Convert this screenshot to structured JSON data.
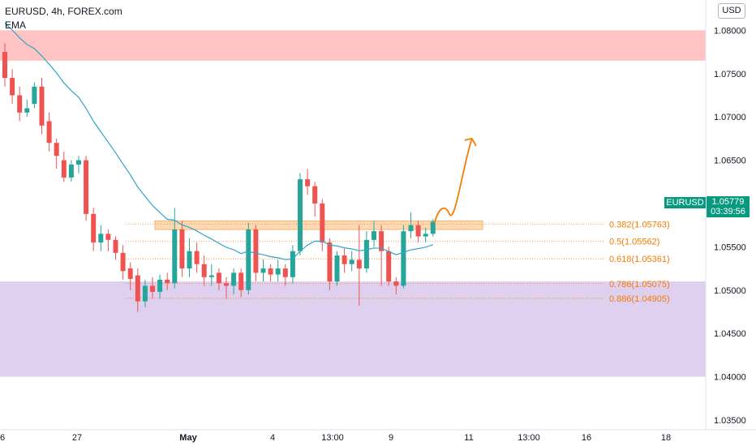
{
  "legend": {
    "symbol": "EURUSD, 4h, FOREX.com",
    "indicator": "EMA"
  },
  "currency_button": "USD",
  "last_price": {
    "symbol": "EURUSD",
    "price": "1.05779",
    "countdown": "03:39:56"
  },
  "colors": {
    "up": "#26a69a",
    "down": "#ef5350",
    "ema": "#2ea6c9",
    "supply_zone": "#ffb8b8",
    "demand_zone": "#d9c8ec",
    "resistance_band": "#ffcc99",
    "fib": "#f57c00",
    "projection": "#f57c00"
  },
  "chart_data": {
    "type": "candlestick",
    "ylim": [
      1.032,
      1.0835
    ],
    "y_ticks": [
      "1.08000",
      "1.07500",
      "1.07000",
      "1.06500",
      "1.06000",
      "1.05500",
      "1.05000",
      "1.04500",
      "1.04000",
      "1.03500"
    ],
    "x_ticks": [
      "6",
      "27",
      "May",
      "4",
      "13:00",
      "9",
      "11",
      "13:00",
      "16",
      "18"
    ],
    "zones": [
      {
        "name": "supply",
        "from": 1.0765,
        "to": 1.08
      },
      {
        "name": "demand",
        "from": 1.04,
        "to": 1.051
      },
      {
        "name": "resistance",
        "from": 1.057,
        "to": 1.058
      }
    ],
    "fib_levels": [
      {
        "ratio": "0.382",
        "price": "1.05763",
        "value": 1.05763
      },
      {
        "ratio": "0.5",
        "price": "1.05562",
        "value": 1.05562
      },
      {
        "ratio": "0.618",
        "price": "1.05361",
        "value": 1.05361
      },
      {
        "ratio": "0.786",
        "price": "1.05075",
        "value": 1.05075
      },
      {
        "ratio": "0.886",
        "price": "1.04905",
        "value": 1.04905
      }
    ],
    "candles": [
      [
        1.0775,
        1.0745,
        1.0785,
        1.0735
      ],
      [
        1.0745,
        1.0725,
        1.0755,
        1.0715
      ],
      [
        1.0725,
        1.0705,
        1.0735,
        1.0695
      ],
      [
        1.0705,
        1.071,
        1.072,
        1.07
      ],
      [
        1.0715,
        1.0735,
        1.074,
        1.071
      ],
      [
        1.0735,
        1.069,
        1.0745,
        1.068
      ],
      [
        1.0695,
        1.067,
        1.0705,
        1.066
      ],
      [
        1.067,
        1.0655,
        1.0675,
        1.064
      ],
      [
        1.065,
        1.063,
        1.066,
        1.0625
      ],
      [
        1.063,
        1.0645,
        1.065,
        1.0625
      ],
      [
        1.0645,
        1.065,
        1.0655,
        1.0635
      ],
      [
        1.065,
        1.0588,
        1.0655,
        1.058
      ],
      [
        1.0588,
        1.0555,
        1.0595,
        1.0545
      ],
      [
        1.0555,
        1.0565,
        1.0575,
        1.0545
      ],
      [
        1.0565,
        1.0558,
        1.057,
        1.0545
      ],
      [
        1.0558,
        1.0543,
        1.0562,
        1.0535
      ],
      [
        1.0543,
        1.0522,
        1.0552,
        1.0512
      ],
      [
        1.0525,
        1.0513,
        1.0532,
        1.05
      ],
      [
        1.0517,
        1.0487,
        1.0525,
        1.0475
      ],
      [
        1.0487,
        1.0505,
        1.0512,
        1.048
      ],
      [
        1.0505,
        1.0498,
        1.0515,
        1.049
      ],
      [
        1.0498,
        1.0512,
        1.0518,
        1.049
      ],
      [
        1.0512,
        1.0508,
        1.052,
        1.05
      ],
      [
        1.0508,
        1.057,
        1.0595,
        1.0502
      ],
      [
        1.057,
        1.0525,
        1.058,
        1.0515
      ],
      [
        1.0525,
        1.0545,
        1.056,
        1.0515
      ],
      [
        1.0545,
        1.053,
        1.0555,
        1.052
      ],
      [
        1.053,
        1.0515,
        1.054,
        1.0505
      ],
      [
        1.0515,
        1.0517,
        1.053,
        1.0505
      ],
      [
        1.052,
        1.0508,
        1.0525,
        1.05
      ],
      [
        1.0508,
        1.0505,
        1.0515,
        1.049
      ],
      [
        1.0505,
        1.052,
        1.0525,
        1.0495
      ],
      [
        1.052,
        1.05,
        1.0525,
        1.0492
      ],
      [
        1.05,
        1.057,
        1.0578,
        1.0495
      ],
      [
        1.057,
        1.052,
        1.0575,
        1.051
      ],
      [
        1.052,
        1.0525,
        1.0535,
        1.051
      ],
      [
        1.0525,
        1.0518,
        1.053,
        1.051
      ],
      [
        1.0518,
        1.0525,
        1.0535,
        1.051
      ],
      [
        1.0525,
        1.0515,
        1.053,
        1.0505
      ],
      [
        1.0515,
        1.0545,
        1.0552,
        1.0508
      ],
      [
        1.0545,
        1.0628,
        1.0635,
        1.054
      ],
      [
        1.0628,
        1.062,
        1.064,
        1.061
      ],
      [
        1.062,
        1.06,
        1.0625,
        1.0585
      ],
      [
        1.06,
        1.0555,
        1.0605,
        1.0545
      ],
      [
        1.0555,
        1.051,
        1.056,
        1.05
      ],
      [
        1.051,
        1.054,
        1.0545,
        1.0505
      ],
      [
        1.054,
        1.053,
        1.0548,
        1.052
      ],
      [
        1.053,
        1.0535,
        1.0545,
        1.0522
      ],
      [
        1.0535,
        1.0525,
        1.0575,
        1.0482
      ],
      [
        1.0525,
        1.0558,
        1.0568,
        1.052
      ],
      [
        1.0558,
        1.0568,
        1.058,
        1.055
      ],
      [
        1.0568,
        1.0545,
        1.0575,
        1.0505
      ],
      [
        1.0545,
        1.051,
        1.055,
        1.0505
      ],
      [
        1.051,
        1.0505,
        1.0515,
        1.0495
      ],
      [
        1.0505,
        1.0568,
        1.0575,
        1.0502
      ],
      [
        1.0568,
        1.0575,
        1.059,
        1.056
      ],
      [
        1.0575,
        1.0562,
        1.058,
        1.0555
      ],
      [
        1.0562,
        1.0565,
        1.0572,
        1.0555
      ],
      [
        1.0565,
        1.0579,
        1.0582,
        1.0562
      ]
    ],
    "ema_start": 1.0815,
    "ema_period": 20
  }
}
